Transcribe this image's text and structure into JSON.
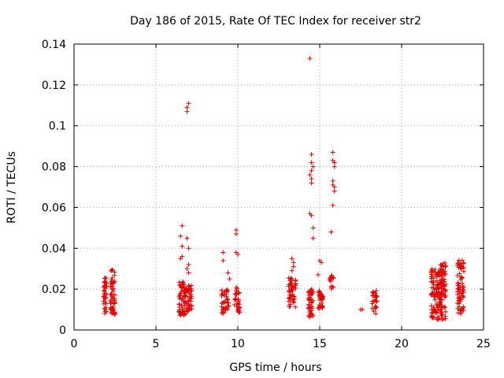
{
  "chart_data": {
    "type": "scatter",
    "title": "Day 186 of 2015, Rate Of TEC Index for receiver str2",
    "xlabel": "GPS time / hours",
    "ylabel": "ROTI / TECUs",
    "xlim": [
      0,
      25
    ],
    "ylim": [
      0,
      0.14
    ],
    "xticks": [
      0,
      5,
      10,
      15,
      20,
      25
    ],
    "yticks": [
      0,
      0.02,
      0.04,
      0.06,
      0.08,
      0.1,
      0.12,
      0.14
    ],
    "xtick_labels": [
      "0",
      "5",
      "10",
      "15",
      "20",
      "25"
    ],
    "ytick_labels": [
      "0",
      "0.02",
      "0.04",
      "0.06",
      "0.08",
      "0.1",
      "0.12",
      "0.14"
    ],
    "grid": true,
    "marker": "+",
    "color": "#e00000",
    "clusters": [
      {
        "x_range": [
          1.8,
          2.0
        ],
        "y_range": [
          0.008,
          0.026
        ],
        "count": 35
      },
      {
        "x_range": [
          2.2,
          2.5
        ],
        "y_range": [
          0.007,
          0.03
        ],
        "count": 55
      },
      {
        "x_range": [
          6.4,
          6.8
        ],
        "y_range": [
          0.007,
          0.024
        ],
        "count": 60
      },
      {
        "x_range": [
          6.8,
          7.2
        ],
        "y_range": [
          0.009,
          0.022
        ],
        "count": 45
      },
      {
        "x_range": [
          9.0,
          9.5
        ],
        "y_range": [
          0.008,
          0.02
        ],
        "count": 40
      },
      {
        "x_range": [
          9.8,
          10.1
        ],
        "y_range": [
          0.008,
          0.021
        ],
        "count": 30
      },
      {
        "x_range": [
          13.1,
          13.6
        ],
        "y_range": [
          0.011,
          0.026
        ],
        "count": 50
      },
      {
        "x_range": [
          14.3,
          14.6
        ],
        "y_range": [
          0.006,
          0.02
        ],
        "count": 45
      },
      {
        "x_range": [
          14.9,
          15.2
        ],
        "y_range": [
          0.01,
          0.02
        ],
        "count": 30
      },
      {
        "x_range": [
          15.6,
          15.9
        ],
        "y_range": [
          0.02,
          0.027
        ],
        "count": 15
      },
      {
        "x_range": [
          18.2,
          18.5
        ],
        "y_range": [
          0.008,
          0.02
        ],
        "count": 25
      },
      {
        "x_range": [
          21.8,
          22.3
        ],
        "y_range": [
          0.005,
          0.03
        ],
        "count": 90
      },
      {
        "x_range": [
          22.3,
          22.7
        ],
        "y_range": [
          0.005,
          0.033
        ],
        "count": 90
      },
      {
        "x_range": [
          23.4,
          23.8
        ],
        "y_range": [
          0.008,
          0.035
        ],
        "count": 70
      }
    ],
    "points": [
      [
        6.6,
        0.051
      ],
      [
        6.5,
        0.046
      ],
      [
        6.6,
        0.041
      ],
      [
        6.6,
        0.036
      ],
      [
        6.5,
        0.035
      ],
      [
        6.9,
        0.107
      ],
      [
        6.9,
        0.109
      ],
      [
        7.0,
        0.111
      ],
      [
        6.9,
        0.045
      ],
      [
        7.0,
        0.04
      ],
      [
        7.0,
        0.032
      ],
      [
        6.9,
        0.03
      ],
      [
        7.0,
        0.028
      ],
      [
        9.1,
        0.038
      ],
      [
        9.1,
        0.034
      ],
      [
        9.4,
        0.028
      ],
      [
        9.5,
        0.025
      ],
      [
        9.9,
        0.049
      ],
      [
        9.9,
        0.047
      ],
      [
        9.9,
        0.038
      ],
      [
        10.0,
        0.037
      ],
      [
        13.3,
        0.035
      ],
      [
        13.4,
        0.033
      ],
      [
        13.4,
        0.031
      ],
      [
        13.3,
        0.029
      ],
      [
        14.4,
        0.133
      ],
      [
        14.5,
        0.086
      ],
      [
        14.5,
        0.082
      ],
      [
        14.6,
        0.08
      ],
      [
        14.5,
        0.078
      ],
      [
        14.4,
        0.076
      ],
      [
        14.5,
        0.074
      ],
      [
        14.5,
        0.072
      ],
      [
        14.4,
        0.057
      ],
      [
        14.5,
        0.056
      ],
      [
        14.6,
        0.05
      ],
      [
        14.6,
        0.045
      ],
      [
        15.0,
        0.034
      ],
      [
        15.1,
        0.033
      ],
      [
        14.9,
        0.027
      ],
      [
        15.8,
        0.087
      ],
      [
        15.8,
        0.083
      ],
      [
        15.9,
        0.082
      ],
      [
        15.9,
        0.08
      ],
      [
        15.8,
        0.073
      ],
      [
        15.8,
        0.071
      ],
      [
        15.9,
        0.07
      ],
      [
        15.9,
        0.068
      ],
      [
        15.8,
        0.061
      ],
      [
        15.7,
        0.048
      ],
      [
        17.6,
        0.01
      ],
      [
        17.5,
        0.01
      ]
    ]
  }
}
